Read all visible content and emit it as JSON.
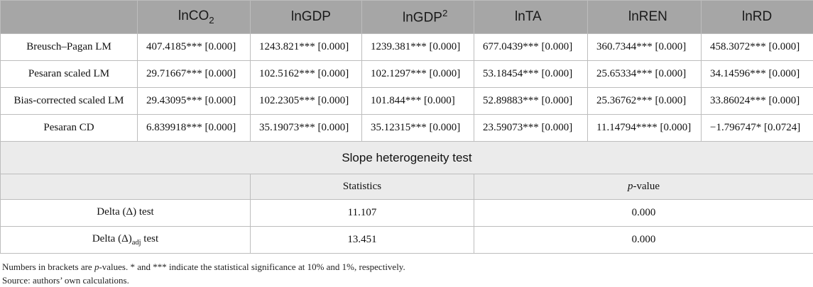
{
  "table": {
    "columns": [
      {
        "base": "lnCO",
        "sub": "2",
        "sup": ""
      },
      {
        "base": "lnGDP",
        "sub": "",
        "sup": ""
      },
      {
        "base": "lnGDP",
        "sub": "",
        "sup": "2"
      },
      {
        "base": "lnTA",
        "sub": "",
        "sup": ""
      },
      {
        "base": "lnREN",
        "sub": "",
        "sup": ""
      },
      {
        "base": "lnRD",
        "sub": "",
        "sup": ""
      }
    ],
    "rows": [
      {
        "label": "Breusch–Pagan LM",
        "cells": [
          "407.4185*** [0.000]",
          "1243.821*** [0.000]",
          "1239.381*** [0.000]",
          "677.0439*** [0.000]",
          "360.7344*** [0.000]",
          "458.3072*** [0.000]"
        ]
      },
      {
        "label": "Pesaran scaled LM",
        "cells": [
          "29.71667*** [0.000]",
          "102.5162*** [0.000]",
          "102.1297*** [0.000]",
          "53.18454*** [0.000]",
          "25.65334*** [0.000]",
          "34.14596*** [0.000]"
        ]
      },
      {
        "label": "Bias-corrected scaled LM",
        "cells": [
          "29.43095*** [0.000]",
          "102.2305*** [0.000]",
          "101.844*** [0.000]",
          "52.89883*** [0.000]",
          "25.36762*** [0.000]",
          "33.86024*** [0.000]"
        ]
      },
      {
        "label": "Pesaran CD",
        "cells": [
          "6.839918*** [0.000]",
          "35.19073*** [0.000]",
          "35.12315*** [0.000]",
          "23.59073*** [0.000]",
          "11.14794**** [0.000]",
          "−1.796747* [0.0724]"
        ]
      }
    ]
  },
  "slope": {
    "title": "Slope heterogeneity test",
    "col_statistics": "Statistics",
    "col_p_italic": "p",
    "col_p_rest": "-value",
    "rows": [
      {
        "label_pre": "Delta (Δ)",
        "label_sub": "",
        "label_post": " test",
        "stat": "11.107",
        "p": "0.000"
      },
      {
        "label_pre": "Delta (Δ)",
        "label_sub": "adj",
        "label_post": " test",
        "stat": "13.451",
        "p": "0.000"
      }
    ]
  },
  "notes": {
    "line1_a": "Numbers in brackets are ",
    "line1_italic": "p",
    "line1_b": "-values. * and *** indicate the statistical significance at 10% and 1%, respectively.",
    "line2": "Source: authors’ own calculations."
  }
}
